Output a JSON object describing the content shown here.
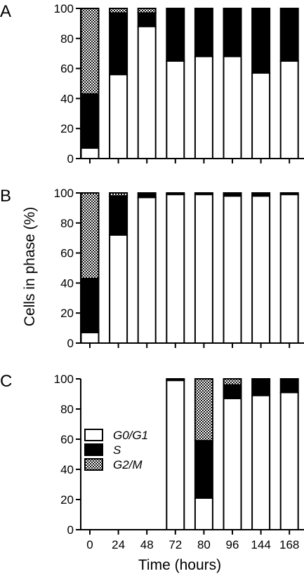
{
  "figure": {
    "ylabel": "Cells in phase (%)",
    "xlabel": "Time (hours)"
  },
  "chart_data": [
    {
      "type": "bar",
      "stacked": true,
      "panel": "A",
      "categories": [
        "0",
        "24",
        "48",
        "72",
        "80",
        "96",
        "144",
        "168"
      ],
      "ylim": [
        0,
        100
      ],
      "yticks": [
        "0",
        "20",
        "40",
        "60",
        "80",
        "100"
      ],
      "grid": false,
      "series": [
        {
          "name": "G0/G1",
          "values": [
            7,
            56,
            88,
            65,
            68,
            68,
            57,
            65
          ]
        },
        {
          "name": "S",
          "values": [
            36,
            41,
            9,
            35,
            32,
            32,
            43,
            35
          ]
        },
        {
          "name": "G2/M",
          "values": [
            57,
            3,
            3,
            0,
            0,
            0,
            0,
            0
          ]
        }
      ]
    },
    {
      "type": "bar",
      "stacked": true,
      "panel": "B",
      "categories": [
        "0",
        "24",
        "48",
        "72",
        "80",
        "96",
        "144",
        "168"
      ],
      "ylim": [
        0,
        100
      ],
      "yticks": [
        "0",
        "20",
        "40",
        "60",
        "80",
        "100"
      ],
      "grid": false,
      "series": [
        {
          "name": "G0/G1",
          "values": [
            7,
            72,
            97,
            99,
            99,
            98,
            98,
            99
          ]
        },
        {
          "name": "S",
          "values": [
            36,
            26,
            3,
            1,
            1,
            2,
            2,
            1
          ]
        },
        {
          "name": "G2/M",
          "values": [
            57,
            2,
            0,
            0,
            0,
            0,
            0,
            0
          ]
        }
      ]
    },
    {
      "type": "bar",
      "stacked": true,
      "panel": "C",
      "categories": [
        "0",
        "24",
        "48",
        "72",
        "80",
        "96",
        "144",
        "168"
      ],
      "ylim": [
        0,
        100
      ],
      "yticks": [
        "0",
        "20",
        "40",
        "60",
        "80",
        "100"
      ],
      "grid": false,
      "legend_placement": "left",
      "series": [
        {
          "name": "G0/G1",
          "values": [
            null,
            null,
            null,
            99,
            21,
            87,
            89,
            91
          ]
        },
        {
          "name": "S",
          "values": [
            null,
            null,
            null,
            1,
            38,
            9,
            11,
            9
          ]
        },
        {
          "name": "G2/M",
          "values": [
            null,
            null,
            null,
            0,
            41,
            4,
            0,
            0
          ]
        }
      ]
    }
  ]
}
